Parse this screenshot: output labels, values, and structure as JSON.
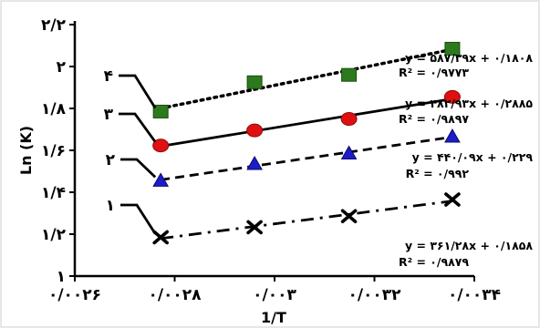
{
  "chart_data": {
    "type": "scatter",
    "xlabel": "1/T",
    "ylabel": "Ln (K)",
    "xlim": [
      0.0026,
      0.0034
    ],
    "ylim": [
      1,
      2.2
    ],
    "x_tick_labels": [
      "۰/۰۰۲۶",
      "۰/۰۰۲۸",
      "۰/۰۰۳",
      "۰/۰۰۳۲",
      "۰/۰۰۳۴"
    ],
    "x_tick_values": [
      0.0026,
      0.0028,
      0.003,
      0.0032,
      0.0034
    ],
    "y_tick_labels": [
      "۱",
      "۱/۲",
      "۱/۴",
      "۱/۶",
      "۱/۸",
      "۲",
      "۲/۲"
    ],
    "y_tick_values": [
      1,
      1.2,
      1.4,
      1.6,
      1.8,
      2,
      2.2
    ],
    "series": [
      {
        "name": "۱",
        "marker": "x",
        "color": "#000000",
        "line_style": "dash-dot",
        "x": [
          0.002772,
          0.00296,
          0.003149,
          0.003356
        ],
        "y": [
          1.185,
          1.233,
          1.286,
          1.365
        ],
        "equation": "y = ۳۶۱/۲۸x + ۰/۱۸۵۸",
        "r2_label": "R² = ۰/۹۸۷۹"
      },
      {
        "name": "۲",
        "marker": "triangle",
        "color": "#1c1cc8",
        "line_style": "dashed",
        "x": [
          0.002772,
          0.00296,
          0.003149,
          0.003356
        ],
        "y": [
          1.455,
          1.535,
          1.585,
          1.665
        ],
        "equation": "y = ۴۴۰/۰۹x + ۰/۲۲۹",
        "r2_label": "R² = ۰/۹۹۲"
      },
      {
        "name": "۳",
        "marker": "circle",
        "color": "#e01010",
        "line_style": "solid",
        "x": [
          0.002772,
          0.00296,
          0.003149,
          0.003356
        ],
        "y": [
          1.623,
          1.695,
          1.75,
          1.855
        ],
        "equation": "y = ۴۸۲/۹۳x + ۰/۲۸۸۵",
        "r2_label": "R² = ۰/۹۸۹۷"
      },
      {
        "name": "۴",
        "marker": "square",
        "color": "#2d7a1e",
        "line_style": "dotted",
        "x": [
          0.002772,
          0.00296,
          0.003149,
          0.003356
        ],
        "y": [
          1.785,
          1.925,
          1.96,
          2.085
        ],
        "equation": "y = ۵۸۷/۳۹x + ۰/۱۸۰۸",
        "r2_label": "R² = ۰/۹۷۷۳"
      }
    ],
    "grid": false,
    "legend": "none"
  }
}
